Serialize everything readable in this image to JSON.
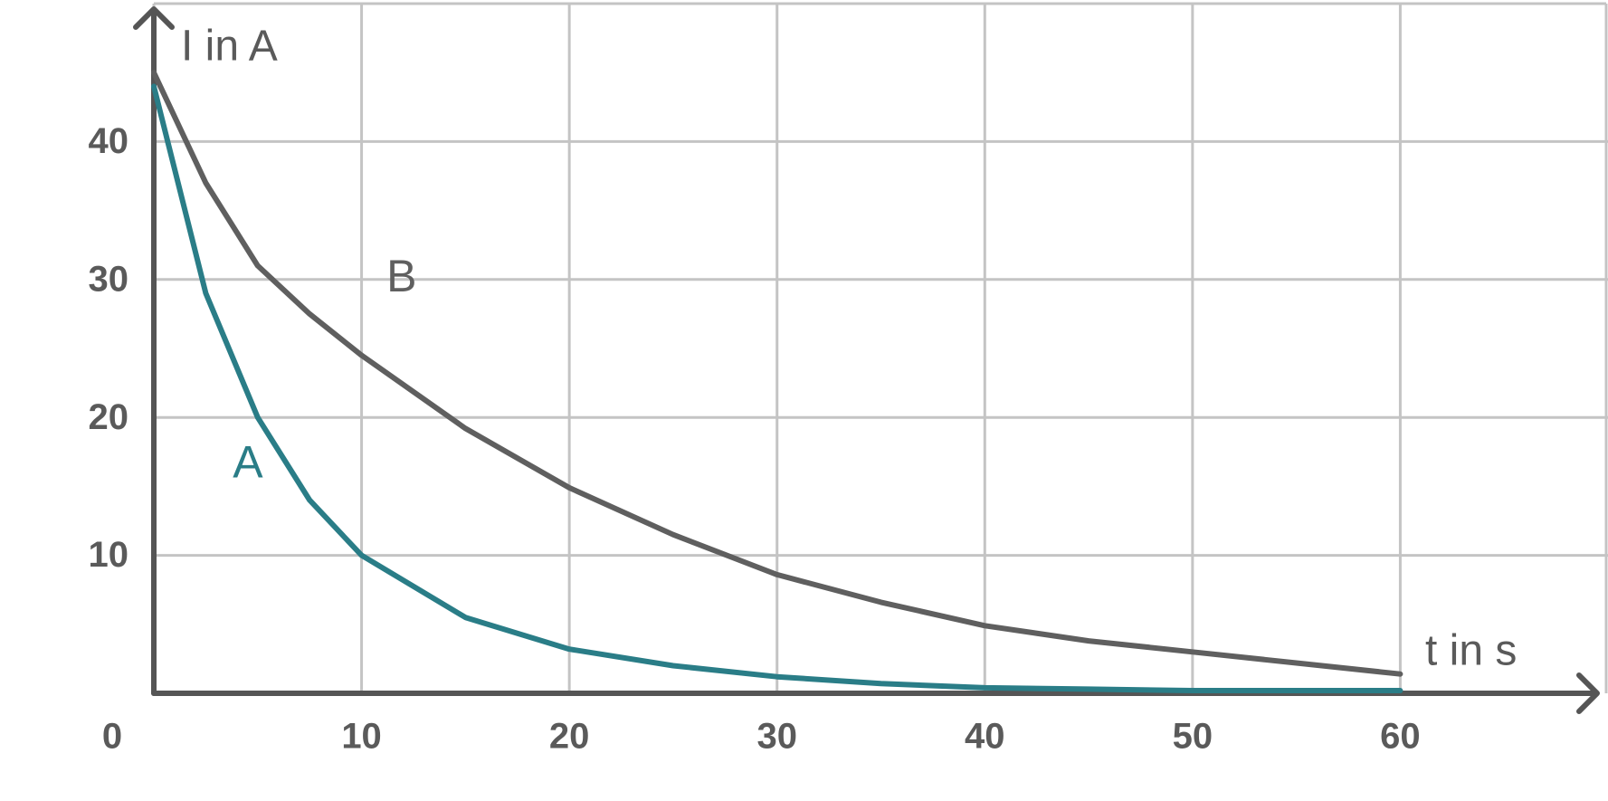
{
  "chart_data": {
    "type": "line",
    "x_label": "t in s",
    "y_label": "I in A",
    "x": [
      0,
      2.5,
      5,
      7.5,
      10,
      15,
      20,
      25,
      30,
      35,
      40,
      45,
      50,
      55,
      60
    ],
    "series": [
      {
        "name": "A",
        "color": "#2a7d87",
        "values": [
          44,
          29,
          20,
          14,
          10,
          5.5,
          3.2,
          2,
          1.2,
          0.7,
          0.4,
          0.3,
          0.2,
          0.2,
          0.2
        ]
      },
      {
        "name": "B",
        "color": "#5f5f5f",
        "values": [
          45,
          37,
          31,
          27.5,
          24.5,
          19.2,
          14.9,
          11.5,
          8.6,
          6.6,
          4.9,
          3.8,
          3.0,
          2.2,
          1.4
        ]
      }
    ],
    "xlim": [
      0,
      70
    ],
    "ylim": [
      0,
      50
    ],
    "xticks": [
      0,
      10,
      20,
      30,
      40,
      50,
      60
    ],
    "yticks": [
      10,
      20,
      30,
      40
    ],
    "grid": true
  }
}
